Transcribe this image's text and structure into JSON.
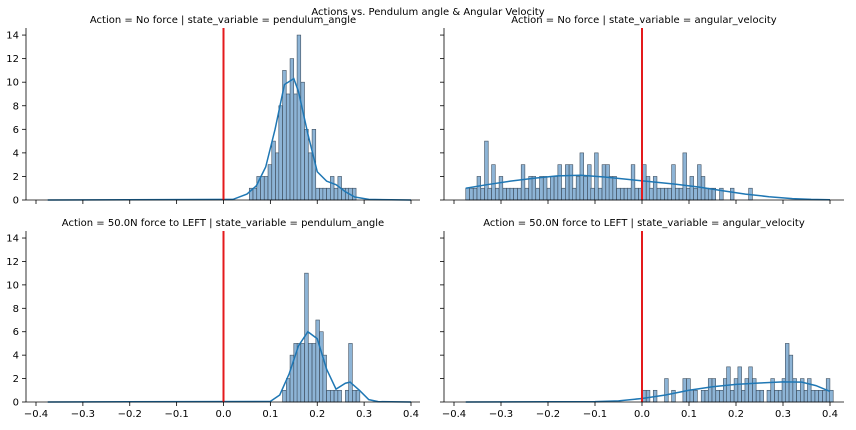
{
  "chart_data": {
    "type": "histogram-grid",
    "suptitle": "Actions vs. Pendulum angle & Angular Velocity",
    "xlim": [
      -0.39,
      0.42
    ],
    "ylim": [
      0,
      14.6
    ],
    "xticks": [
      -0.4,
      -0.3,
      -0.2,
      -0.1,
      0.0,
      0.1,
      0.2,
      0.3,
      0.4
    ],
    "xtick_labels": [
      "−0.4",
      "−0.3",
      "−0.2",
      "−0.1",
      "0.0",
      "0.1",
      "0.2",
      "0.3",
      "0.4"
    ],
    "yticks": [
      0,
      2,
      4,
      6,
      8,
      10,
      12,
      14
    ],
    "ytick_labels": [
      "0",
      "2",
      "4",
      "6",
      "8",
      "10",
      "12",
      "14"
    ],
    "bin_width": 0.0078,
    "vline_x": 0.0,
    "kde_range": [
      -0.375,
      0.4
    ],
    "colors": {
      "bar_fill": "#8db4d6",
      "bar_edge": "#3f4f5f",
      "kde": "#1f77b4",
      "vline": "#e41a1c"
    },
    "panels": [
      {
        "title": "Action = No force | state_variable = pendulum_angle",
        "bins": [
          [
            0.055,
            1
          ],
          [
            0.063,
            1
          ],
          [
            0.071,
            2
          ],
          [
            0.079,
            2
          ],
          [
            0.087,
            2
          ],
          [
            0.095,
            3
          ],
          [
            0.103,
            5
          ],
          [
            0.111,
            4
          ],
          [
            0.118,
            8
          ],
          [
            0.126,
            11
          ],
          [
            0.134,
            9
          ],
          [
            0.142,
            12
          ],
          [
            0.15,
            9
          ],
          [
            0.157,
            14
          ],
          [
            0.165,
            10
          ],
          [
            0.173,
            6
          ],
          [
            0.181,
            4
          ],
          [
            0.189,
            6
          ],
          [
            0.197,
            1
          ],
          [
            0.205,
            1
          ],
          [
            0.212,
            1
          ],
          [
            0.22,
            1
          ],
          [
            0.228,
            2
          ],
          [
            0.236,
            1
          ],
          [
            0.244,
            2
          ],
          [
            0.252,
            1
          ],
          [
            0.26,
            1
          ],
          [
            0.267,
            1
          ],
          [
            0.275,
            1
          ]
        ],
        "kde": [
          [
            -0.375,
            0
          ],
          [
            0.02,
            0.05
          ],
          [
            0.05,
            0.5
          ],
          [
            0.07,
            1.2
          ],
          [
            0.09,
            2.8
          ],
          [
            0.11,
            6
          ],
          [
            0.13,
            9.8
          ],
          [
            0.15,
            10.3
          ],
          [
            0.16,
            9.2
          ],
          [
            0.18,
            5.6
          ],
          [
            0.2,
            2.4
          ],
          [
            0.22,
            1.6
          ],
          [
            0.24,
            1.3
          ],
          [
            0.26,
            0.7
          ],
          [
            0.28,
            0.25
          ],
          [
            0.31,
            0.05
          ],
          [
            0.4,
            0
          ]
        ]
      },
      {
        "title": "Action = No force | state_variable = angular_velocity",
        "bins": [
          [
            -0.375,
            1
          ],
          [
            -0.367,
            1
          ],
          [
            -0.359,
            1
          ],
          [
            -0.351,
            2
          ],
          [
            -0.343,
            1
          ],
          [
            -0.335,
            5
          ],
          [
            -0.328,
            1
          ],
          [
            -0.32,
            3
          ],
          [
            -0.312,
            1
          ],
          [
            -0.304,
            2
          ],
          [
            -0.296,
            1
          ],
          [
            -0.288,
            1
          ],
          [
            -0.281,
            1
          ],
          [
            -0.273,
            1
          ],
          [
            -0.265,
            1
          ],
          [
            -0.257,
            3
          ],
          [
            -0.249,
            1
          ],
          [
            -0.241,
            2
          ],
          [
            -0.234,
            2
          ],
          [
            -0.226,
            1
          ],
          [
            -0.218,
            2
          ],
          [
            -0.21,
            2
          ],
          [
            -0.202,
            1
          ],
          [
            -0.195,
            2
          ],
          [
            -0.187,
            2
          ],
          [
            -0.179,
            3
          ],
          [
            -0.171,
            1
          ],
          [
            -0.163,
            3
          ],
          [
            -0.155,
            3
          ],
          [
            -0.148,
            1
          ],
          [
            -0.14,
            2
          ],
          [
            -0.132,
            4
          ],
          [
            -0.124,
            2
          ],
          [
            -0.116,
            3
          ],
          [
            -0.109,
            1
          ],
          [
            -0.101,
            4
          ],
          [
            -0.093,
            1
          ],
          [
            -0.085,
            3
          ],
          [
            -0.077,
            3
          ],
          [
            -0.07,
            2
          ],
          [
            -0.062,
            2
          ],
          [
            -0.054,
            1
          ],
          [
            -0.046,
            1
          ],
          [
            -0.038,
            1
          ],
          [
            -0.031,
            1
          ],
          [
            -0.023,
            3
          ],
          [
            -0.015,
            1
          ],
          [
            -0.007,
            1
          ],
          [
            0.001,
            3
          ],
          [
            0.009,
            2
          ],
          [
            0.016,
            1
          ],
          [
            0.024,
            2
          ],
          [
            0.032,
            1
          ],
          [
            0.04,
            1
          ],
          [
            0.048,
            1
          ],
          [
            0.055,
            1
          ],
          [
            0.063,
            3
          ],
          [
            0.071,
            1
          ],
          [
            0.079,
            1
          ],
          [
            0.087,
            4
          ],
          [
            0.095,
            1
          ],
          [
            0.102,
            2
          ],
          [
            0.11,
            1
          ],
          [
            0.118,
            3
          ],
          [
            0.126,
            2
          ],
          [
            0.134,
            1
          ],
          [
            0.141,
            1
          ],
          [
            0.149,
            1
          ],
          [
            0.165,
            1
          ],
          [
            0.188,
            1
          ],
          [
            0.227,
            1
          ]
        ],
        "kde": [
          [
            -0.375,
            1
          ],
          [
            -0.33,
            1.3
          ],
          [
            -0.28,
            1.6
          ],
          [
            -0.23,
            1.85
          ],
          [
            -0.18,
            2.05
          ],
          [
            -0.13,
            2.1
          ],
          [
            -0.08,
            1.95
          ],
          [
            -0.03,
            1.75
          ],
          [
            0.02,
            1.55
          ],
          [
            0.07,
            1.35
          ],
          [
            0.12,
            1.1
          ],
          [
            0.17,
            0.8
          ],
          [
            0.22,
            0.5
          ],
          [
            0.27,
            0.28
          ],
          [
            0.32,
            0.12
          ],
          [
            0.36,
            0.05
          ],
          [
            0.4,
            0.02
          ]
        ]
      },
      {
        "title": "Action = 50.0N force to LEFT | state_variable = pendulum_angle",
        "bins": [
          [
            0.126,
            1
          ],
          [
            0.134,
            2
          ],
          [
            0.142,
            4
          ],
          [
            0.15,
            5
          ],
          [
            0.157,
            5
          ],
          [
            0.165,
            5
          ],
          [
            0.173,
            11
          ],
          [
            0.181,
            5
          ],
          [
            0.189,
            5
          ],
          [
            0.197,
            7
          ],
          [
            0.205,
            6
          ],
          [
            0.212,
            4
          ],
          [
            0.22,
            1
          ],
          [
            0.228,
            1
          ],
          [
            0.236,
            1
          ],
          [
            0.244,
            1
          ],
          [
            0.26,
            1
          ],
          [
            0.267,
            5
          ],
          [
            0.275,
            1
          ],
          [
            0.283,
            1
          ]
        ],
        "kde": [
          [
            -0.375,
            0
          ],
          [
            0.1,
            0.05
          ],
          [
            0.12,
            0.6
          ],
          [
            0.14,
            2.4
          ],
          [
            0.16,
            4.8
          ],
          [
            0.18,
            6
          ],
          [
            0.2,
            5.4
          ],
          [
            0.22,
            2.8
          ],
          [
            0.24,
            1.1
          ],
          [
            0.26,
            1.6
          ],
          [
            0.27,
            1.7
          ],
          [
            0.29,
            1
          ],
          [
            0.31,
            0.2
          ],
          [
            0.33,
            0.03
          ],
          [
            0.4,
            0
          ]
        ]
      },
      {
        "title": "Action = 50.0N force to LEFT | state_variable = angular_velocity",
        "bins": [
          [
            0.001,
            1
          ],
          [
            0.009,
            1
          ],
          [
            0.024,
            1
          ],
          [
            0.048,
            2
          ],
          [
            0.063,
            1
          ],
          [
            0.087,
            2
          ],
          [
            0.095,
            2
          ],
          [
            0.102,
            1
          ],
          [
            0.11,
            1
          ],
          [
            0.126,
            1
          ],
          [
            0.134,
            1
          ],
          [
            0.141,
            2
          ],
          [
            0.149,
            2
          ],
          [
            0.157,
            1
          ],
          [
            0.165,
            1
          ],
          [
            0.173,
            2
          ],
          [
            0.18,
            3
          ],
          [
            0.188,
            1
          ],
          [
            0.196,
            2
          ],
          [
            0.204,
            3
          ],
          [
            0.212,
            1
          ],
          [
            0.219,
            2
          ],
          [
            0.227,
            3
          ],
          [
            0.235,
            2
          ],
          [
            0.243,
            1
          ],
          [
            0.251,
            1
          ],
          [
            0.266,
            1
          ],
          [
            0.274,
            2
          ],
          [
            0.282,
            1
          ],
          [
            0.29,
            1
          ],
          [
            0.298,
            2
          ],
          [
            0.305,
            5
          ],
          [
            0.313,
            4
          ],
          [
            0.321,
            2
          ],
          [
            0.329,
            1
          ],
          [
            0.337,
            2
          ],
          [
            0.345,
            1
          ],
          [
            0.352,
            2
          ],
          [
            0.36,
            1
          ],
          [
            0.368,
            1
          ],
          [
            0.376,
            1
          ],
          [
            0.384,
            1
          ],
          [
            0.392,
            2
          ],
          [
            0.399,
            1
          ]
        ],
        "kde": [
          [
            -0.375,
            0
          ],
          [
            -0.1,
            0.03
          ],
          [
            -0.05,
            0.1
          ],
          [
            0.0,
            0.3
          ],
          [
            0.05,
            0.6
          ],
          [
            0.1,
            1
          ],
          [
            0.15,
            1.3
          ],
          [
            0.2,
            1.5
          ],
          [
            0.25,
            1.62
          ],
          [
            0.3,
            1.72
          ],
          [
            0.34,
            1.7
          ],
          [
            0.37,
            1.4
          ],
          [
            0.4,
            0.9
          ]
        ]
      }
    ]
  }
}
